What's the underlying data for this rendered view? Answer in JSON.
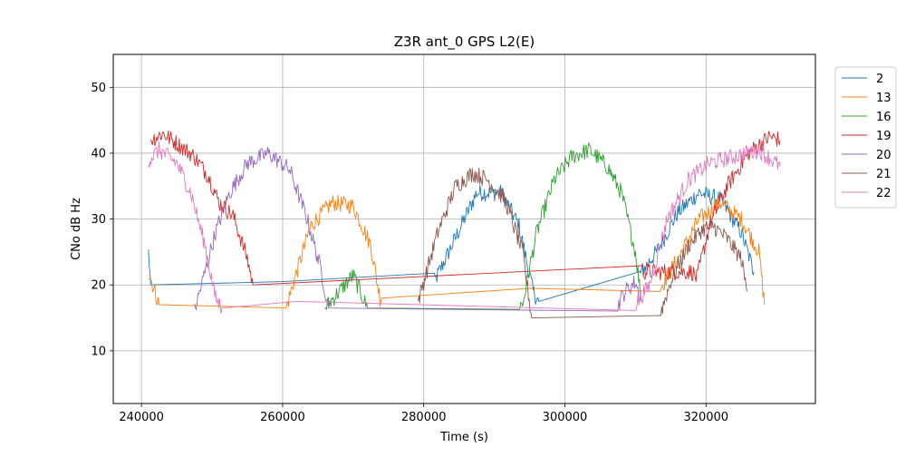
{
  "chart_data": {
    "type": "line",
    "title": "Z3R ant_0 GPS L2(E)",
    "xlabel": "Time (s)",
    "ylabel": "CNo dB Hz",
    "xlim": [
      236000,
      335500
    ],
    "ylim": [
      2,
      55
    ],
    "xticks": [
      240000,
      260000,
      280000,
      300000,
      320000
    ],
    "yticks": [
      10,
      20,
      30,
      40,
      50
    ],
    "xtick_labels": [
      "240000",
      "260000",
      "280000",
      "300000",
      "320000"
    ],
    "ytick_labels": [
      "10",
      "20",
      "30",
      "40",
      "50"
    ],
    "grid": true,
    "legend_position": "outside-right",
    "series": [
      {
        "name": "2",
        "color": "#1f77b4",
        "x": [
          241000,
          241300,
          260000,
          281500,
          284000,
          287500,
          291000,
          293500,
          295500,
          296300,
          310500,
          313000,
          316000,
          319000,
          322000,
          325000,
          326800
        ],
        "y": [
          25,
          20,
          20.5,
          20.5,
          26,
          34,
          34,
          29,
          19,
          17.5,
          21.5,
          25,
          31,
          34,
          33,
          28,
          22
        ]
      },
      {
        "name": "13",
        "color": "#ff7f0e",
        "x": [
          241000,
          242500,
          260500,
          262000,
          264000,
          267000,
          270000,
          272500,
          273800,
          274000,
          295000,
          313500,
          316000,
          319000,
          322000,
          325000,
          327500,
          328300
        ],
        "y": [
          22,
          17,
          16.5,
          22,
          29,
          32.5,
          32,
          26,
          18,
          18,
          19.5,
          19.5,
          24,
          30,
          32.5,
          30,
          25,
          17
        ]
      },
      {
        "name": "16",
        "color": "#2ca02c",
        "x": [
          266000,
          268000,
          270000,
          272000,
          293500,
          294000,
          296000,
          298500,
          301000,
          303500,
          306000,
          308000,
          310000,
          310800
        ],
        "y": [
          16.5,
          19,
          21.5,
          16.5,
          17,
          17,
          28,
          36,
          39.5,
          40.5,
          38,
          34,
          25,
          18
        ]
      },
      {
        "name": "19",
        "color": "#d62728",
        "x": [
          241300,
          243000,
          245000,
          247500,
          249500,
          251000,
          253000,
          255000,
          255800,
          311000,
          318000,
          318700,
          320500,
          323000,
          326000,
          329000,
          330500
        ],
        "y": [
          42,
          43,
          41.5,
          39.5,
          36.5,
          32.5,
          30.5,
          24,
          20,
          22,
          22,
          21,
          29,
          35,
          40,
          42.5,
          42
        ]
      },
      {
        "name": "20",
        "color": "#9467bd",
        "x": [
          247500,
          248500,
          250500,
          252500,
          255000,
          258000,
          261000,
          263500,
          265500,
          266500,
          307500,
          308500,
          310000,
          310800
        ],
        "y": [
          16,
          20,
          28,
          34,
          38.5,
          40,
          37.5,
          30,
          22,
          16.5,
          17,
          19,
          20.5,
          17.5
        ]
      },
      {
        "name": "21",
        "color": "#8c564b",
        "x": [
          279200,
          280000,
          282000,
          284500,
          287000,
          289000,
          291500,
          294000,
          295300,
          313500,
          315000,
          317500,
          319500,
          321000,
          323000,
          325000,
          325800
        ],
        "y": [
          17.5,
          20.5,
          28,
          35,
          37,
          36,
          33,
          25,
          15,
          15.5,
          20.5,
          26,
          28.5,
          29,
          27,
          24,
          19
        ]
      },
      {
        "name": "22",
        "color": "#e377c2",
        "x": [
          241000,
          242500,
          245000,
          247000,
          249000,
          250500,
          251400,
          262000,
          310000,
          312000,
          314500,
          317500,
          320500,
          324000,
          327500,
          330500
        ],
        "y": [
          39,
          40.5,
          38.5,
          34,
          26,
          18,
          16.5,
          17.5,
          17,
          20,
          30,
          36,
          38.5,
          39.5,
          40.5,
          38
        ]
      }
    ]
  }
}
